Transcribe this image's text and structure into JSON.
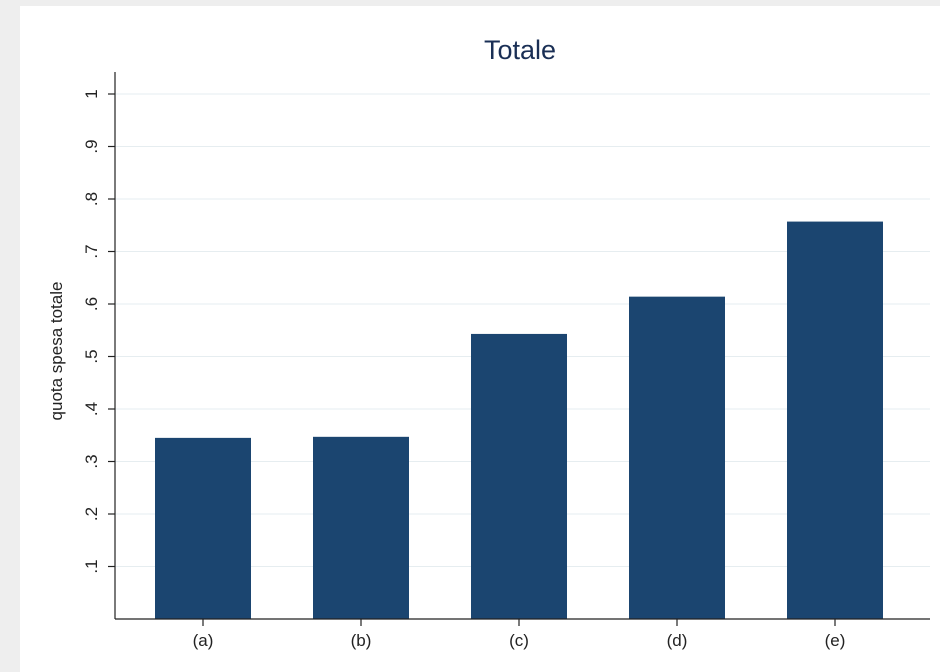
{
  "chart_data": {
    "type": "bar",
    "title": "Totale",
    "xlabel": "",
    "ylabel": "quota spesa totale",
    "categories": [
      "(a)",
      "(b)",
      "(c)",
      "(d)",
      "(e)"
    ],
    "values": [
      0.345,
      0.347,
      0.543,
      0.614,
      0.757
    ],
    "ylim": [
      0,
      1.05
    ],
    "yticks": [
      0.1,
      0.2,
      0.3,
      0.4,
      0.5,
      0.6,
      0.7,
      0.8,
      0.9,
      1
    ],
    "ytick_labels": [
      ".1",
      ".2",
      ".3",
      ".4",
      ".5",
      ".6",
      ".7",
      ".8",
      ".9",
      "1"
    ],
    "grid": true,
    "legend": "none",
    "colors": {
      "bar": "#1b4570",
      "title": "#1a2f55",
      "grid": "#e6edf0",
      "frame_background": "#eeeeee"
    }
  }
}
